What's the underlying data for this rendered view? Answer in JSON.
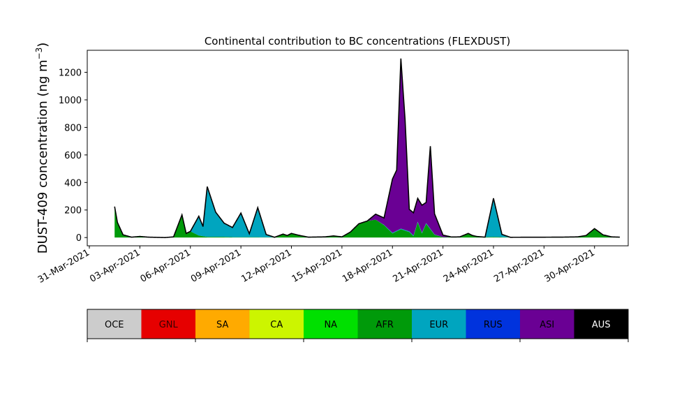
{
  "chart_data": {
    "type": "area",
    "stacked": true,
    "title": "Continental contribution to BC concentrations (FLEXDUST)",
    "ylabel_text": "DUST-409 concentration (ng m",
    "ylabel_sup": "−3",
    "ylabel_close": ")",
    "ylim": [
      -60,
      1360
    ],
    "xlim": [
      "2021-03-30T21:00",
      "2021-05-02T00:00"
    ],
    "x_start": "2021-04-01T12:00",
    "x_end": "2021-05-01T12:00",
    "x_ticks": [
      "31-Mar-2021",
      "03-Apr-2021",
      "06-Apr-2021",
      "09-Apr-2021",
      "12-Apr-2021",
      "15-Apr-2021",
      "18-Apr-2021",
      "21-Apr-2021",
      "24-Apr-2021",
      "27-Apr-2021",
      "30-Apr-2021"
    ],
    "x_tick_dates": [
      "2021-03-31",
      "2021-04-03",
      "2021-04-06",
      "2021-04-09",
      "2021-04-12",
      "2021-04-15",
      "2021-04-18",
      "2021-04-21",
      "2021-04-24",
      "2021-04-27",
      "2021-04-30"
    ],
    "y_ticks": [
      0,
      200,
      400,
      600,
      800,
      1000,
      1200
    ],
    "grid": false,
    "series": [
      {
        "name": "AFR",
        "color": "#009a0a",
        "points": [
          [
            "2021-04-01T12:00",
            225
          ],
          [
            "2021-04-01T16:00",
            110
          ],
          [
            "2021-04-02T00:00",
            20
          ],
          [
            "2021-04-02T12:00",
            3
          ],
          [
            "2021-04-03T00:00",
            8
          ],
          [
            "2021-04-03T12:00",
            3
          ],
          [
            "2021-04-04T12:00",
            0
          ],
          [
            "2021-04-05T00:00",
            5
          ],
          [
            "2021-04-05T12:00",
            165
          ],
          [
            "2021-04-05T18:00",
            30
          ],
          [
            "2021-04-06T00:00",
            45
          ],
          [
            "2021-04-06T12:00",
            15
          ],
          [
            "2021-04-07T00:00",
            5
          ],
          [
            "2021-04-08T00:00",
            5
          ],
          [
            "2021-04-08T12:00",
            3
          ],
          [
            "2021-04-09T00:00",
            3
          ],
          [
            "2021-04-11T00:00",
            2
          ],
          [
            "2021-04-11T12:00",
            25
          ],
          [
            "2021-04-11T18:00",
            15
          ],
          [
            "2021-04-12T00:00",
            30
          ],
          [
            "2021-04-12T12:00",
            15
          ],
          [
            "2021-04-13T00:00",
            3
          ],
          [
            "2021-04-14T00:00",
            5
          ],
          [
            "2021-04-14T12:00",
            12
          ],
          [
            "2021-04-15T00:00",
            5
          ],
          [
            "2021-04-15T12:00",
            40
          ],
          [
            "2021-04-16T00:00",
            100
          ],
          [
            "2021-04-16T12:00",
            120
          ],
          [
            "2021-04-17T00:00",
            130
          ],
          [
            "2021-04-17T12:00",
            90
          ],
          [
            "2021-04-18T00:00",
            30
          ],
          [
            "2021-04-18T12:00",
            60
          ],
          [
            "2021-04-19T00:00",
            40
          ],
          [
            "2021-04-19T06:00",
            10
          ],
          [
            "2021-04-19T12:00",
            110
          ],
          [
            "2021-04-19T18:00",
            30
          ],
          [
            "2021-04-20T00:00",
            100
          ],
          [
            "2021-04-20T12:00",
            20
          ],
          [
            "2021-04-21T00:00",
            3
          ],
          [
            "2021-04-22T00:00",
            5
          ],
          [
            "2021-04-22T12:00",
            30
          ],
          [
            "2021-04-22T18:00",
            15
          ],
          [
            "2021-04-23T00:00",
            8
          ],
          [
            "2021-04-23T12:00",
            3
          ],
          [
            "2021-04-24T00:00",
            5
          ],
          [
            "2021-04-24T12:00",
            3
          ],
          [
            "2021-04-25T00:00",
            2
          ],
          [
            "2021-04-28T00:00",
            3
          ],
          [
            "2021-04-29T00:00",
            5
          ],
          [
            "2021-04-29T12:00",
            15
          ],
          [
            "2021-04-30T00:00",
            65
          ],
          [
            "2021-04-30T12:00",
            20
          ],
          [
            "2021-05-01T00:00",
            5
          ],
          [
            "2021-05-01T12:00",
            3
          ]
        ]
      },
      {
        "name": "EUR",
        "color": "#00a5bf",
        "points": [
          [
            "2021-04-01T12:00",
            0
          ],
          [
            "2021-04-04T12:00",
            0
          ],
          [
            "2021-04-05T00:00",
            0
          ],
          [
            "2021-04-05T12:00",
            0
          ],
          [
            "2021-04-06T00:00",
            0
          ],
          [
            "2021-04-06T12:00",
            140
          ],
          [
            "2021-04-06T18:00",
            70
          ],
          [
            "2021-04-07T00:00",
            365
          ],
          [
            "2021-04-07T12:00",
            180
          ],
          [
            "2021-04-08T00:00",
            100
          ],
          [
            "2021-04-08T12:00",
            70
          ],
          [
            "2021-04-09T00:00",
            175
          ],
          [
            "2021-04-09T12:00",
            25
          ],
          [
            "2021-04-10T00:00",
            215
          ],
          [
            "2021-04-10T12:00",
            20
          ],
          [
            "2021-04-11T00:00",
            0
          ],
          [
            "2021-04-17T00:00",
            0
          ],
          [
            "2021-04-18T00:00",
            5
          ],
          [
            "2021-04-19T00:00",
            5
          ],
          [
            "2021-04-20T00:00",
            5
          ],
          [
            "2021-04-21T00:00",
            0
          ],
          [
            "2021-04-23T12:00",
            0
          ],
          [
            "2021-04-24T00:00",
            280
          ],
          [
            "2021-04-24T12:00",
            20
          ],
          [
            "2021-04-25T00:00",
            0
          ],
          [
            "2021-05-01T12:00",
            0
          ]
        ]
      },
      {
        "name": "ASI",
        "color": "#6a0094",
        "points": [
          [
            "2021-04-01T12:00",
            0
          ],
          [
            "2021-04-16T12:00",
            0
          ],
          [
            "2021-04-17T00:00",
            40
          ],
          [
            "2021-04-17T12:00",
            50
          ],
          [
            "2021-04-18T00:00",
            390
          ],
          [
            "2021-04-18T06:00",
            440
          ],
          [
            "2021-04-18T12:00",
            1235
          ],
          [
            "2021-04-18T18:00",
            800
          ],
          [
            "2021-04-19T00:00",
            160
          ],
          [
            "2021-04-19T12:00",
            170
          ],
          [
            "2021-04-19T18:00",
            200
          ],
          [
            "2021-04-20T00:00",
            150
          ],
          [
            "2021-04-20T06:00",
            600
          ],
          [
            "2021-04-20T12:00",
            150
          ],
          [
            "2021-04-21T00:00",
            15
          ],
          [
            "2021-04-21T12:00",
            0
          ],
          [
            "2021-05-01T12:00",
            0
          ]
        ]
      }
    ],
    "legend": [
      {
        "label": "OCE",
        "color": "#cccccc",
        "text_color": "#000000"
      },
      {
        "label": "GNL",
        "color": "#e60000",
        "text_color": "#3a0000"
      },
      {
        "label": "SA",
        "color": "#ffaa00",
        "text_color": "#000000"
      },
      {
        "label": "CA",
        "color": "#ccf500",
        "text_color": "#000000"
      },
      {
        "label": "NA",
        "color": "#00e000",
        "text_color": "#000000"
      },
      {
        "label": "AFR",
        "color": "#009a0a",
        "text_color": "#000000"
      },
      {
        "label": "EUR",
        "color": "#00a5bf",
        "text_color": "#000000"
      },
      {
        "label": "RUS",
        "color": "#0033dd",
        "text_color": "#000000"
      },
      {
        "label": "ASI",
        "color": "#6a0094",
        "text_color": "#000000"
      },
      {
        "label": "AUS",
        "color": "#000000",
        "text_color": "#ffffff"
      }
    ]
  }
}
